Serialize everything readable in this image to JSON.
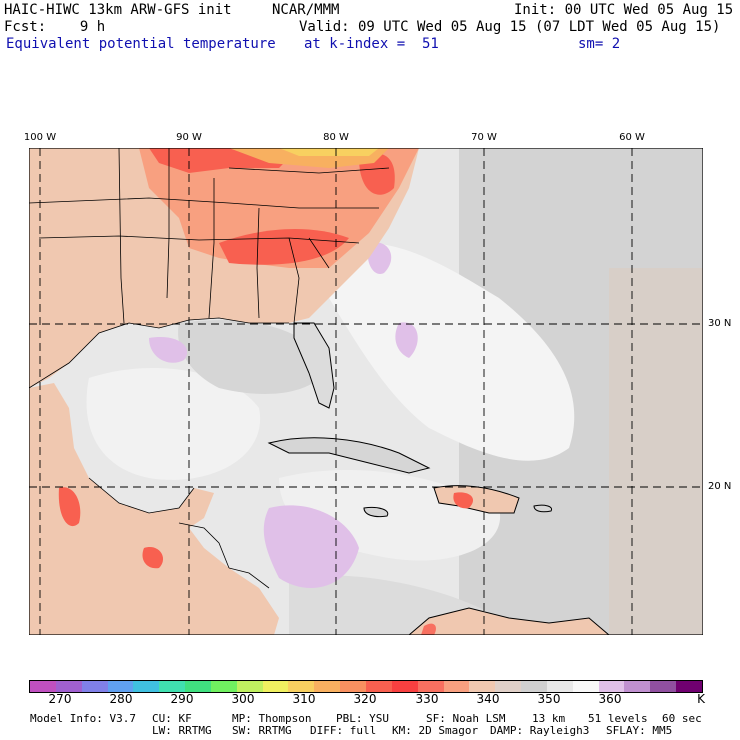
{
  "header": {
    "line1_left": "HAIC-HIWC 13km ARW-GFS init",
    "line1_center": "NCAR/MMM",
    "line1_right": "Init: 00 UTC Wed 05 Aug 15",
    "fcst": "Fcst:    9 h",
    "valid": "Valid: 09 UTC Wed 05 Aug 15 (07 LDT Wed 05 Aug 15)",
    "field": "Equivalent potential temperature",
    "level": "at k-index =  51",
    "smooth": "sm= 2"
  },
  "map": {
    "lon_labels": [
      "100 W",
      "90 W",
      "80 W",
      "70 W",
      "60 W"
    ],
    "lat_labels": [
      "30 N",
      "20 N"
    ]
  },
  "legend": {
    "colors": [
      "#c050c0",
      "#a060d0",
      "#8080e8",
      "#60a0f0",
      "#40c0e0",
      "#40e0b0",
      "#40e080",
      "#70f060",
      "#c0f060",
      "#f0f060",
      "#f8d060",
      "#f8b060",
      "#f89060",
      "#f86050",
      "#f84040",
      "#f87060",
      "#f8a080",
      "#f0c8b0",
      "#e0d0c8",
      "#d0d0d0",
      "#e8e8e8",
      "#f8f8f8",
      "#e0c0e8",
      "#c090d0",
      "#9050a0",
      "#700070"
    ],
    "ticks": [
      "270",
      "280",
      "290",
      "300",
      "310",
      "320",
      "330",
      "340",
      "350",
      "360"
    ],
    "unit": "K"
  },
  "footer": {
    "line1": [
      "Model Info: V3.7",
      "CU: KF",
      "MP: Thompson",
      "PBL: YSU",
      "SF: Noah LSM",
      "13 km",
      "51 levels",
      "60 sec"
    ],
    "line2": [
      "LW: RRTMG",
      "SW: RRTMG",
      "DIFF: full",
      "KM: 2D Smagor",
      "DAMP: Rayleigh3",
      "SFLAY: MM5"
    ]
  }
}
